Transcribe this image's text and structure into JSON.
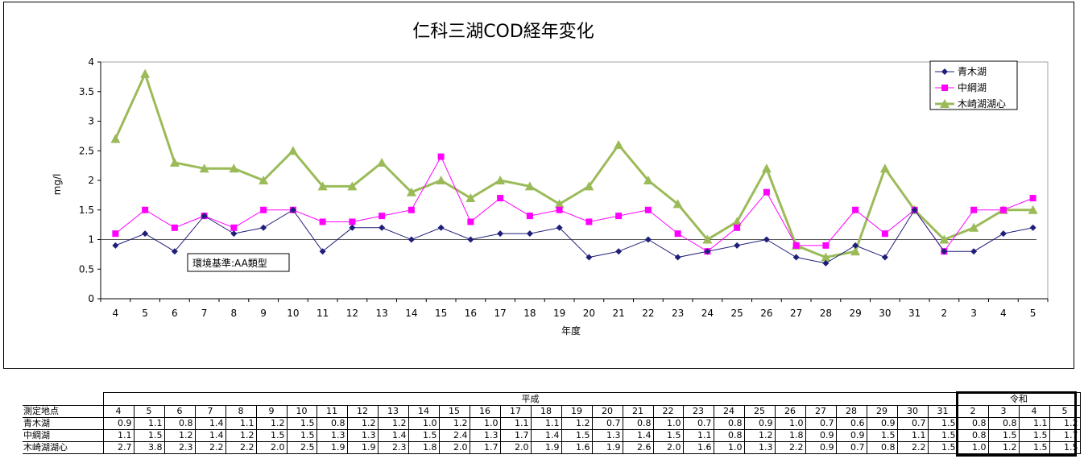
{
  "chart_data": {
    "type": "line",
    "title": "仁科三湖COD経年変化",
    "xlabel": "年度",
    "ylabel": "mg/l",
    "ylim": [
      0,
      4
    ],
    "yticks": [
      "0",
      "0.5",
      "1",
      "1.5",
      "2",
      "2.5",
      "3",
      "3.5",
      "4"
    ],
    "categories": [
      "4",
      "5",
      "6",
      "7",
      "8",
      "9",
      "10",
      "11",
      "12",
      "13",
      "14",
      "15",
      "16",
      "17",
      "18",
      "19",
      "20",
      "21",
      "22",
      "23",
      "24",
      "25",
      "26",
      "27",
      "28",
      "29",
      "30",
      "31",
      "2",
      "3",
      "4",
      "5"
    ],
    "series": [
      {
        "name": "青木湖",
        "color": "#1f1f7a",
        "marker": "diamond",
        "values": [
          0.9,
          1.1,
          0.8,
          1.4,
          1.1,
          1.2,
          1.5,
          0.8,
          1.2,
          1.2,
          1.0,
          1.2,
          1.0,
          1.1,
          1.1,
          1.2,
          0.7,
          0.8,
          1.0,
          0.7,
          0.8,
          0.9,
          1.0,
          0.7,
          0.6,
          0.9,
          0.7,
          1.5,
          0.8,
          0.8,
          1.1,
          1.2
        ]
      },
      {
        "name": "中綱湖",
        "color": "#ff00ff",
        "marker": "square",
        "values": [
          1.1,
          1.5,
          1.2,
          1.4,
          1.2,
          1.5,
          1.5,
          1.3,
          1.3,
          1.4,
          1.5,
          2.4,
          1.3,
          1.7,
          1.4,
          1.5,
          1.3,
          1.4,
          1.5,
          1.1,
          0.8,
          1.2,
          1.8,
          0.9,
          0.9,
          1.5,
          1.1,
          1.5,
          0.8,
          1.5,
          1.5,
          1.7
        ]
      },
      {
        "name": "木崎湖湖心",
        "color": "#9bbb59",
        "marker": "triangle",
        "values": [
          2.7,
          3.8,
          2.3,
          2.2,
          2.2,
          2.0,
          2.5,
          1.9,
          1.9,
          2.3,
          1.8,
          2.0,
          1.7,
          2.0,
          1.9,
          1.6,
          1.9,
          2.6,
          2.0,
          1.6,
          1.0,
          1.3,
          2.2,
          0.9,
          0.7,
          0.8,
          2.2,
          1.5,
          1.0,
          1.2,
          1.5,
          1.5
        ]
      }
    ],
    "standard_line": {
      "value": 1.0,
      "label": "環境基準:AA類型"
    },
    "legend": "top-right",
    "grid": false
  },
  "table": {
    "header_label": "測定地点",
    "era_heisei": "平成",
    "era_reiwa": "令和",
    "display_values": {
      "青木湖": [
        "0.9",
        "1.1",
        "0.8",
        "1.4",
        "1.1",
        "1.2",
        "1.5",
        "0.8",
        "1.2",
        "1.2",
        "1.0",
        "1.2",
        "1.0",
        "1.1",
        "1.1",
        "1.2",
        "0.7",
        "0.8",
        "1.0",
        "0.7",
        "0.8",
        "0.9",
        "1.0",
        "0.7",
        "0.6",
        "0.9",
        "0.7",
        "1.5",
        "0.8",
        "0.8",
        "1.1",
        "1.2"
      ],
      "中綱湖": [
        "1.1",
        "1.5",
        "1.2",
        "1.4",
        "1.2",
        "1.5",
        "1.5",
        "1.3",
        "1.3",
        "1.4",
        "1.5",
        "2.4",
        "1.3",
        "1.7",
        "1.4",
        "1.5",
        "1.3",
        "1.4",
        "1.5",
        "1.1",
        "0.8",
        "1.2",
        "1.8",
        "0.9",
        "0.9",
        "1.5",
        "1.1",
        "1.5",
        "0.8",
        "1.5",
        "1.5",
        "1.7"
      ],
      "木崎湖湖心": [
        "2.7",
        "3.8",
        "2.3",
        "2.2",
        "2.2",
        "2.0",
        "2.5",
        "1.9",
        "1.9",
        "2.3",
        "1.8",
        "2.0",
        "1.7",
        "2.0",
        "1.9",
        "1.6",
        "1.9",
        "2.6",
        "2.0",
        "1.6",
        "1.0",
        "1.3",
        "2.2",
        "0.9",
        "0.7",
        "0.8",
        "2.2",
        "1.5",
        "1.0",
        "1.2",
        "1.5",
        "1.5"
      ]
    }
  }
}
